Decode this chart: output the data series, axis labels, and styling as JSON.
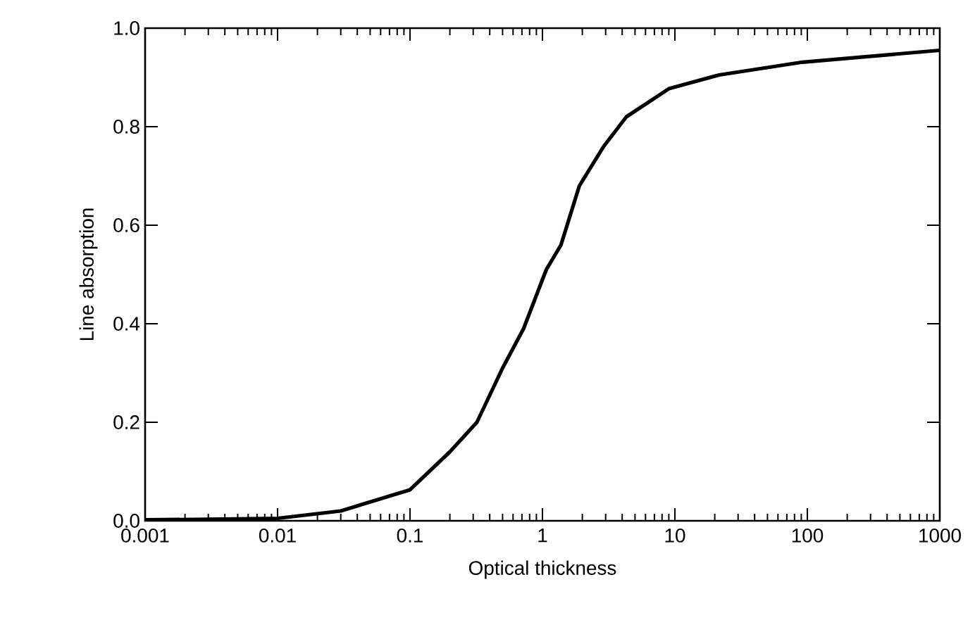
{
  "chart_data": {
    "type": "line",
    "xlabel": "Optical thickness",
    "ylabel": "Line absorption",
    "log": "x",
    "xlim": [
      0.001,
      1000
    ],
    "ylim": [
      0,
      1
    ],
    "xticks": [
      0.001,
      0.01,
      0.1,
      1,
      10,
      100,
      1000
    ],
    "yticks": [
      {
        "value": 0,
        "label": "0.0"
      },
      {
        "value": 0.2,
        "label": "0.2"
      },
      {
        "value": 0.4,
        "label": "0.4"
      },
      {
        "value": 0.6,
        "label": "0.6"
      },
      {
        "value": 0.8,
        "label": "0.8"
      },
      {
        "value": 1,
        "label": "1.0"
      }
    ],
    "series": [
      {
        "color": "#000000",
        "x": [
          0.001,
          0.003,
          0.01,
          0.03,
          0.1,
          0.2,
          0.32,
          0.5,
          0.72,
          1.07,
          1.38,
          1.9,
          2.9,
          4.3,
          9,
          21.6,
          92,
          1000
        ],
        "values": [
          0.002,
          0.003,
          0.005,
          0.02,
          0.063,
          0.14,
          0.2,
          0.31,
          0.39,
          0.51,
          0.56,
          0.68,
          0.76,
          0.82,
          0.877,
          0.905,
          0.931,
          0.955
        ]
      }
    ]
  }
}
